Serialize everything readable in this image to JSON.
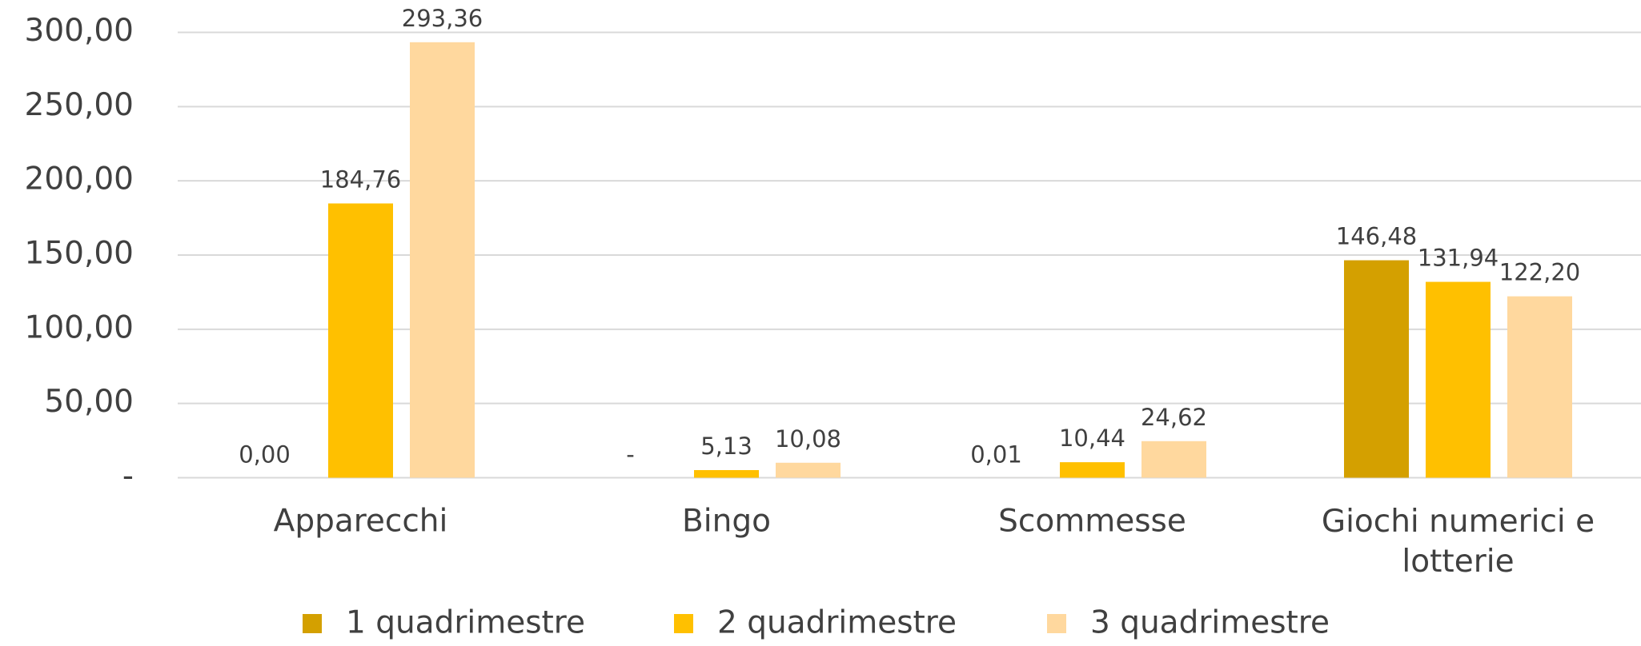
{
  "chart_data": {
    "type": "bar",
    "categories": [
      "Apparecchi",
      "Bingo",
      "Scommesse",
      "Giochi numerici e lotterie"
    ],
    "series": [
      {
        "name": "1 quadrimestre",
        "color": "#d4a000",
        "values": [
          0,
          0,
          0.01,
          146.48
        ],
        "value_labels": [
          "0,00",
          "-",
          "0,01",
          "146,48"
        ]
      },
      {
        "name": "2 quadrimestre",
        "color": "#ffc000",
        "values": [
          184.76,
          5.13,
          10.44,
          131.94
        ],
        "value_labels": [
          "184,76",
          "5,13",
          "10,44",
          "131,94"
        ]
      },
      {
        "name": "3 quadrimestre",
        "color": "#ffd89e",
        "values": [
          293.36,
          10.08,
          24.62,
          122.2
        ],
        "value_labels": [
          "293,36",
          "10,08",
          "24,62",
          "122,20"
        ]
      }
    ],
    "ylim": [
      0,
      300
    ],
    "yticks": [
      {
        "value": 0,
        "label": "-"
      },
      {
        "value": 50,
        "label": "50,00"
      },
      {
        "value": 100,
        "label": "100,00"
      },
      {
        "value": 150,
        "label": "150,00"
      },
      {
        "value": 200,
        "label": "200,00"
      },
      {
        "value": 250,
        "label": "250,00"
      },
      {
        "value": 300,
        "label": "300,00"
      }
    ],
    "grid": true,
    "legend": "bottom"
  }
}
